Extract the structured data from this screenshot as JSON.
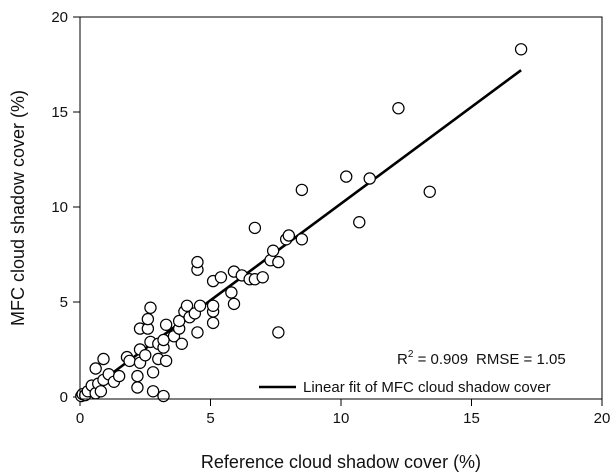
{
  "chart_data": {
    "type": "scatter",
    "xlabel": "Reference cloud shadow cover (%)",
    "ylabel": "MFC cloud shadow cover (%)",
    "xlim": [
      0,
      20
    ],
    "ylim": [
      0,
      20
    ],
    "xticks": [
      0,
      5,
      10,
      15,
      20
    ],
    "yticks": [
      0,
      5,
      10,
      15,
      20
    ],
    "grid": false,
    "annotation": {
      "r2_prefix": "R",
      "r2_sup": "2",
      "r2_value": " = 0.909",
      "rmse": "RMSE = 1.05"
    },
    "legend": {
      "placement": "bottom-right",
      "entries": [
        {
          "name": "Linear fit of MFC cloud shadow cover",
          "marker": "line",
          "color": "#000000"
        }
      ]
    },
    "fit_line": {
      "x": [
        0,
        16.9
      ],
      "y": [
        0,
        17.2
      ]
    },
    "points": [
      {
        "x": 0.05,
        "y": 0.05
      },
      {
        "x": 0.1,
        "y": 0.15
      },
      {
        "x": 0.2,
        "y": 0.1
      },
      {
        "x": 0.3,
        "y": 0.3
      },
      {
        "x": 0.45,
        "y": 0.6
      },
      {
        "x": 0.6,
        "y": 0.2
      },
      {
        "x": 0.7,
        "y": 0.7
      },
      {
        "x": 0.8,
        "y": 0.3
      },
      {
        "x": 0.6,
        "y": 1.5
      },
      {
        "x": 0.9,
        "y": 2.0
      },
      {
        "x": 0.9,
        "y": 0.9
      },
      {
        "x": 1.1,
        "y": 1.2
      },
      {
        "x": 1.3,
        "y": 0.8
      },
      {
        "x": 1.5,
        "y": 1.1
      },
      {
        "x": 1.8,
        "y": 2.1
      },
      {
        "x": 1.9,
        "y": 1.9
      },
      {
        "x": 2.2,
        "y": 1.1
      },
      {
        "x": 2.2,
        "y": 0.5
      },
      {
        "x": 2.3,
        "y": 1.8
      },
      {
        "x": 2.3,
        "y": 2.5
      },
      {
        "x": 2.3,
        "y": 3.6
      },
      {
        "x": 2.5,
        "y": 2.2
      },
      {
        "x": 2.6,
        "y": 3.6
      },
      {
        "x": 2.6,
        "y": 4.1
      },
      {
        "x": 2.7,
        "y": 4.7
      },
      {
        "x": 2.7,
        "y": 2.9
      },
      {
        "x": 2.8,
        "y": 1.3
      },
      {
        "x": 2.8,
        "y": 0.3
      },
      {
        "x": 3.0,
        "y": 2.0
      },
      {
        "x": 3.0,
        "y": 2.8
      },
      {
        "x": 3.2,
        "y": 2.6
      },
      {
        "x": 3.2,
        "y": 3.0
      },
      {
        "x": 3.3,
        "y": 3.8
      },
      {
        "x": 3.3,
        "y": 1.9
      },
      {
        "x": 3.2,
        "y": 0.05
      },
      {
        "x": 3.6,
        "y": 3.2
      },
      {
        "x": 3.8,
        "y": 3.6
      },
      {
        "x": 3.8,
        "y": 4.0
      },
      {
        "x": 3.9,
        "y": 2.8
      },
      {
        "x": 4.0,
        "y": 4.5
      },
      {
        "x": 4.1,
        "y": 4.8
      },
      {
        "x": 4.2,
        "y": 4.2
      },
      {
        "x": 4.4,
        "y": 4.4
      },
      {
        "x": 4.5,
        "y": 3.4
      },
      {
        "x": 4.5,
        "y": 6.7
      },
      {
        "x": 4.5,
        "y": 7.1
      },
      {
        "x": 4.6,
        "y": 4.8
      },
      {
        "x": 5.1,
        "y": 4.5
      },
      {
        "x": 5.1,
        "y": 4.8
      },
      {
        "x": 5.1,
        "y": 3.9
      },
      {
        "x": 5.1,
        "y": 6.1
      },
      {
        "x": 5.4,
        "y": 6.3
      },
      {
        "x": 5.8,
        "y": 5.5
      },
      {
        "x": 5.9,
        "y": 6.6
      },
      {
        "x": 5.9,
        "y": 4.9
      },
      {
        "x": 6.2,
        "y": 6.4
      },
      {
        "x": 6.5,
        "y": 6.2
      },
      {
        "x": 6.7,
        "y": 6.2
      },
      {
        "x": 6.7,
        "y": 8.9
      },
      {
        "x": 7.0,
        "y": 6.3
      },
      {
        "x": 7.3,
        "y": 7.2
      },
      {
        "x": 7.4,
        "y": 7.7
      },
      {
        "x": 7.6,
        "y": 7.1
      },
      {
        "x": 7.6,
        "y": 3.4
      },
      {
        "x": 7.9,
        "y": 8.3
      },
      {
        "x": 8.0,
        "y": 8.5
      },
      {
        "x": 8.5,
        "y": 8.3
      },
      {
        "x": 8.5,
        "y": 10.9
      },
      {
        "x": 10.2,
        "y": 11.6
      },
      {
        "x": 10.7,
        "y": 9.2
      },
      {
        "x": 11.1,
        "y": 11.5
      },
      {
        "x": 12.2,
        "y": 15.2
      },
      {
        "x": 13.4,
        "y": 10.8
      },
      {
        "x": 16.9,
        "y": 18.3
      }
    ]
  }
}
